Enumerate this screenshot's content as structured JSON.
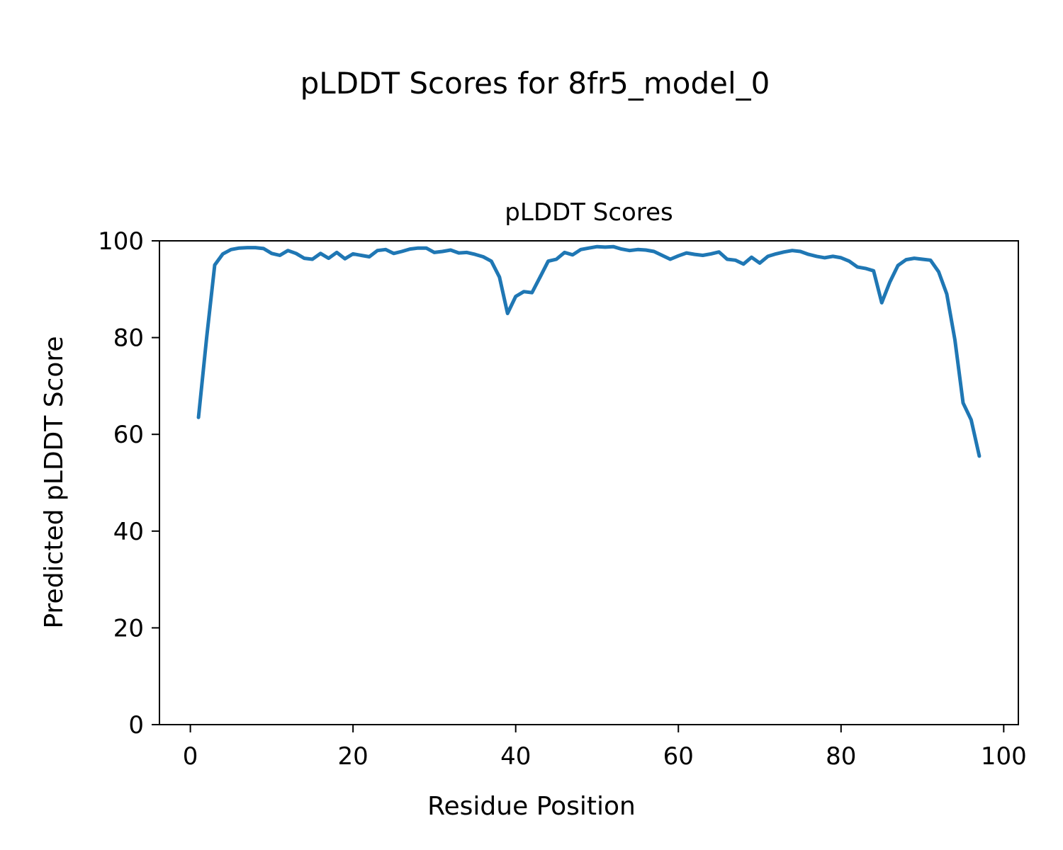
{
  "figure": {
    "title": "pLDDT Scores for 8fr5_model_0"
  },
  "chart_data": {
    "type": "line",
    "title": "pLDDT Scores",
    "xlabel": "Residue Position",
    "ylabel": "Predicted pLDDT Score",
    "xlim": [
      -3.8,
      101.8
    ],
    "ylim": [
      0,
      100
    ],
    "xticks": [
      0,
      20,
      40,
      60,
      80,
      100
    ],
    "yticks": [
      0,
      20,
      40,
      60,
      80,
      100
    ],
    "grid": false,
    "legend_position": "none",
    "line_color": "#1f77b4",
    "x": [
      1,
      2,
      3,
      4,
      5,
      6,
      7,
      8,
      9,
      10,
      11,
      12,
      13,
      14,
      15,
      16,
      17,
      18,
      19,
      20,
      21,
      22,
      23,
      24,
      25,
      26,
      27,
      28,
      29,
      30,
      31,
      32,
      33,
      34,
      35,
      36,
      37,
      38,
      39,
      40,
      41,
      42,
      43,
      44,
      45,
      46,
      47,
      48,
      49,
      50,
      51,
      52,
      53,
      54,
      55,
      56,
      57,
      58,
      59,
      60,
      61,
      62,
      63,
      64,
      65,
      66,
      67,
      68,
      69,
      70,
      71,
      72,
      73,
      74,
      75,
      76,
      77,
      78,
      79,
      80,
      81,
      82,
      83,
      84,
      85,
      86,
      87,
      88,
      89,
      90,
      91,
      92,
      93,
      94,
      95,
      96,
      97
    ],
    "y": [
      63.5,
      80.0,
      95.0,
      97.3,
      98.2,
      98.5,
      98.6,
      98.6,
      98.4,
      97.4,
      97.0,
      98.0,
      97.4,
      96.4,
      96.2,
      97.4,
      96.4,
      97.6,
      96.3,
      97.3,
      97.0,
      96.7,
      98.0,
      98.2,
      97.4,
      97.8,
      98.3,
      98.5,
      98.5,
      97.6,
      97.8,
      98.1,
      97.5,
      97.6,
      97.2,
      96.7,
      95.8,
      92.5,
      85.0,
      88.5,
      89.5,
      89.3,
      92.5,
      95.8,
      96.2,
      97.6,
      97.1,
      98.2,
      98.5,
      98.8,
      98.7,
      98.8,
      98.3,
      98.0,
      98.2,
      98.1,
      97.8,
      97.0,
      96.2,
      96.9,
      97.5,
      97.2,
      97.0,
      97.3,
      97.7,
      96.2,
      96.0,
      95.2,
      96.6,
      95.4,
      96.8,
      97.3,
      97.7,
      98.0,
      97.8,
      97.2,
      96.8,
      96.5,
      96.8,
      96.5,
      95.8,
      94.6,
      94.3,
      93.8,
      87.2,
      91.5,
      94.9,
      96.1,
      96.4,
      96.2,
      96.0,
      93.6,
      89.0,
      79.5,
      66.5,
      63.0,
      55.5
    ]
  }
}
